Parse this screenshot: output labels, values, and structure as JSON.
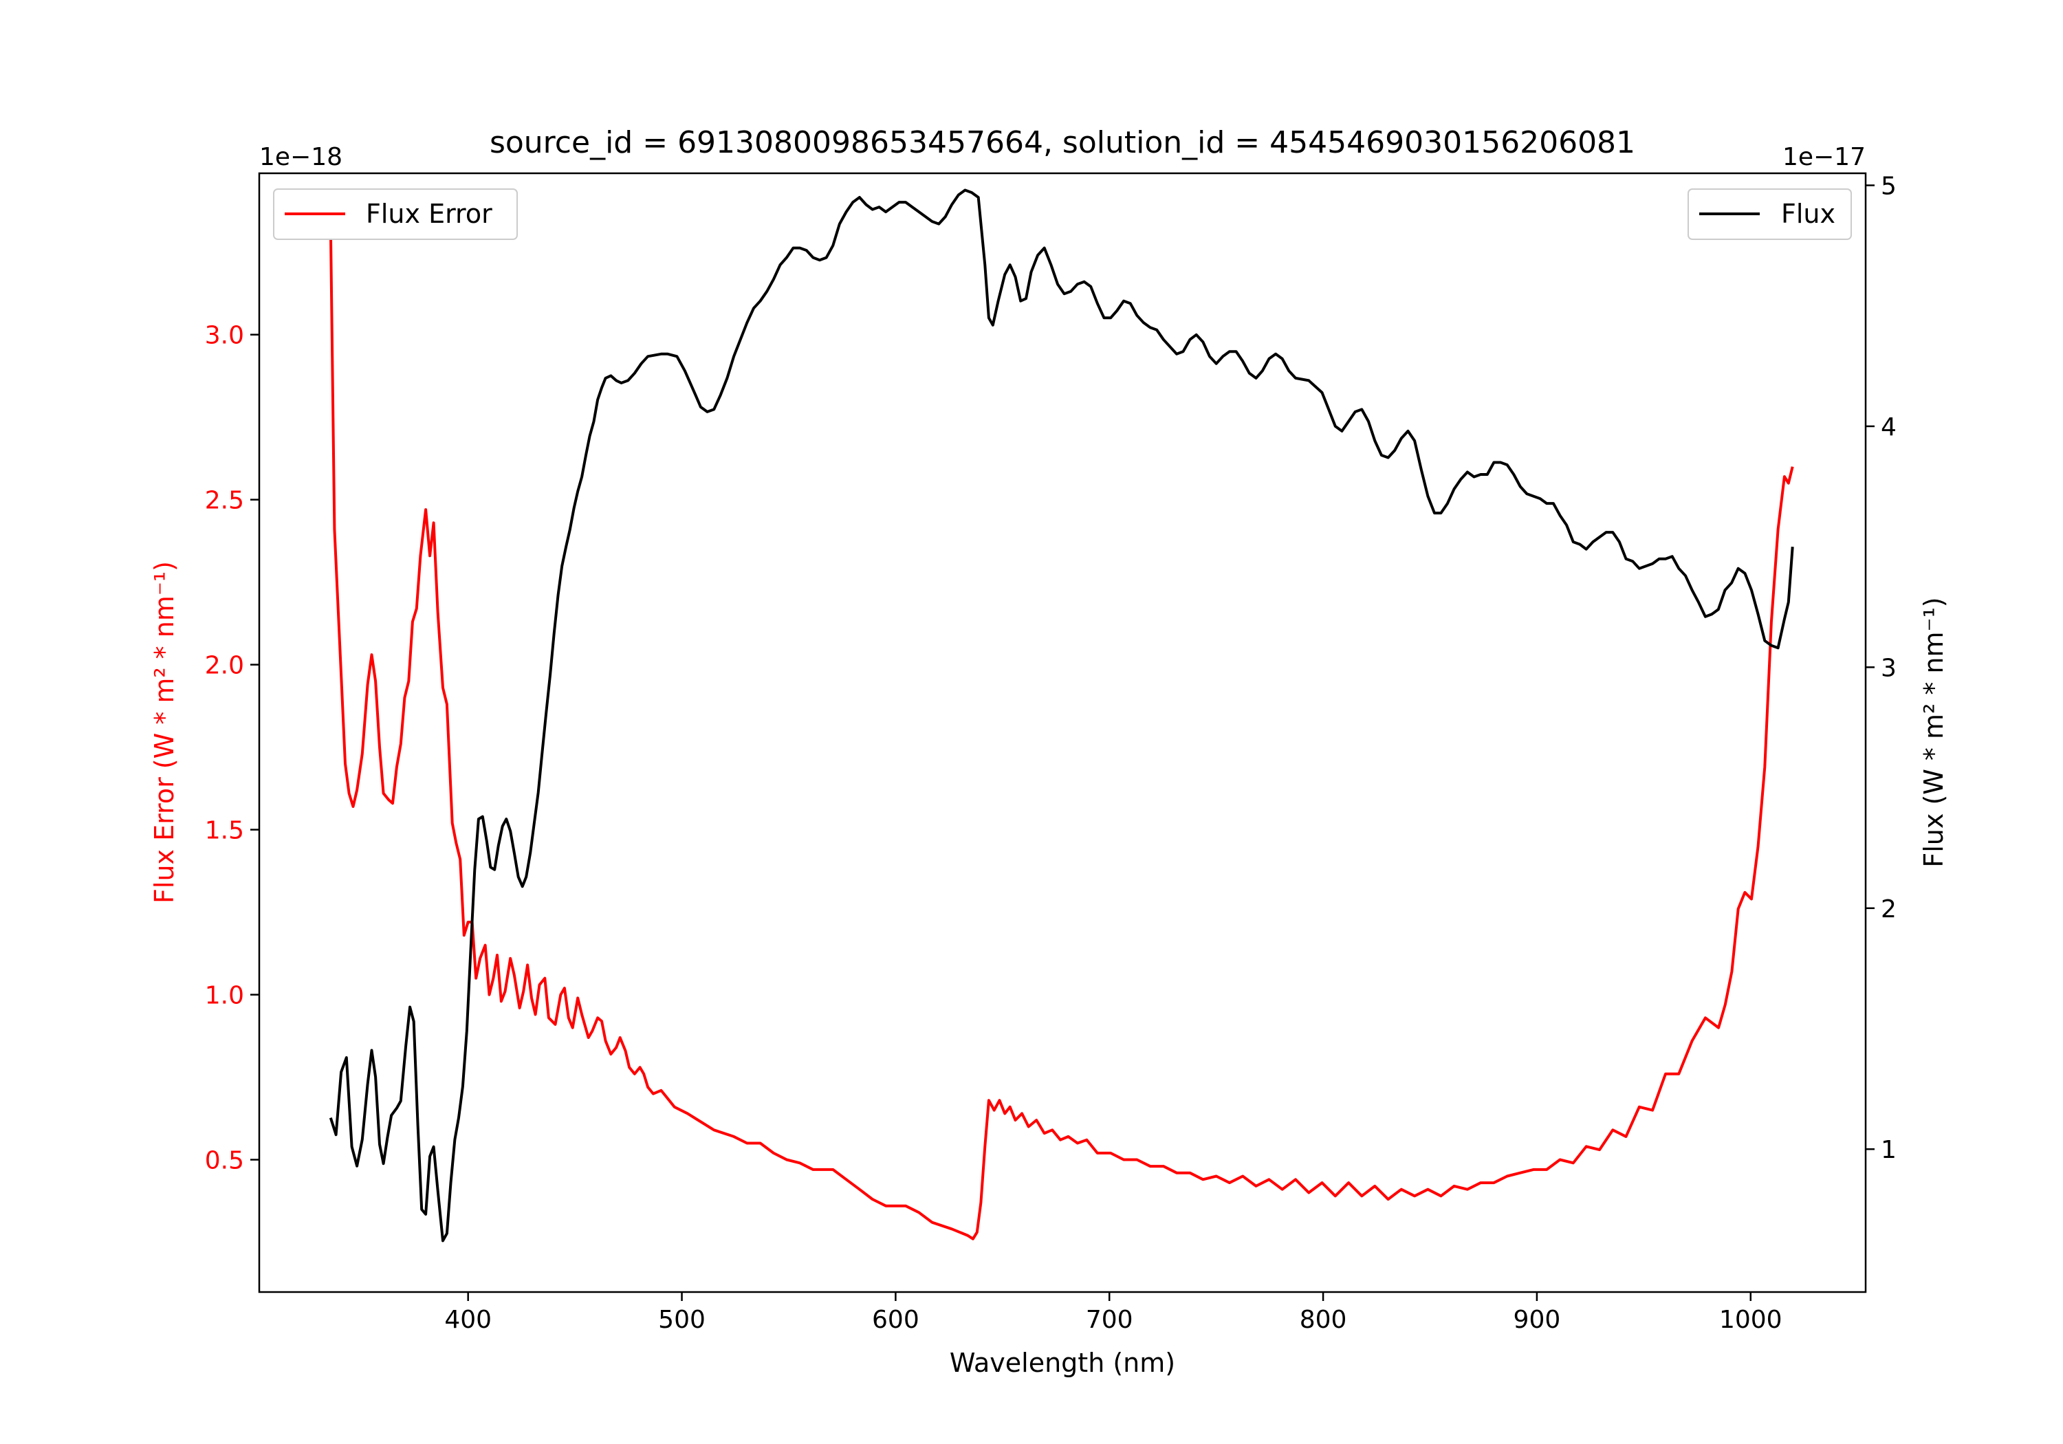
{
  "chart_data": {
    "type": "line",
    "title": "source_id = 6913080098653457664, solution_id = 4545469030156206081",
    "xlabel": "Wavelength (nm)",
    "ylabel_left": "Flux Error (W * m² * nm⁻¹)",
    "ylabel_right": "Flux (W * m² * nm⁻¹)",
    "left_offset_text": "1e−18",
    "right_offset_text": "1e−17",
    "xlim": [
      302.3,
      1053.8
    ],
    "ylim_left": [
      0.099,
      3.489
    ],
    "ylim_right": [
      0.407,
      5.05
    ],
    "xticks": [
      400,
      500,
      600,
      700,
      800,
      900,
      1000
    ],
    "xtick_labels": [
      "400",
      "500",
      "600",
      "700",
      "800",
      "900",
      "1000"
    ],
    "yticks_left": [
      0.5,
      1.0,
      1.5,
      2.0,
      2.5,
      3.0
    ],
    "ytick_labels_left": [
      "0.5",
      "1.0",
      "1.5",
      "2.0",
      "2.5",
      "3.0"
    ],
    "yticks_right": [
      1,
      2,
      3,
      4,
      5
    ],
    "ytick_labels_right": [
      "1",
      "2",
      "3",
      "4",
      "5"
    ],
    "grid": false,
    "series": [
      {
        "name": "Flux Error",
        "axis": "left",
        "color": "#ff0000",
        "legend": "top-left",
        "x": [
          335.7,
          337.5,
          340.6,
          342.5,
          344.3,
          346.2,
          348,
          350.5,
          353,
          354.9,
          356.7,
          358.6,
          360.4,
          362.9,
          364.7,
          366.6,
          368.5,
          370.3,
          372.2,
          374,
          375.9,
          377.7,
          380.2,
          382.1,
          383.9,
          385.8,
          388.2,
          390.1,
          392.6,
          394.4,
          396.3,
          398.1,
          400,
          401.9,
          403.7,
          405.6,
          408,
          409.9,
          411.8,
          413.6,
          415.5,
          417.3,
          419.8,
          421.6,
          424.1,
          425.9,
          427.8,
          429.7,
          431.5,
          433.4,
          435.9,
          437.7,
          440.8,
          443.3,
          445.1,
          447,
          448.9,
          451.3,
          453.2,
          456.3,
          458.1,
          460.6,
          462.5,
          464.3,
          466.8,
          469.3,
          471.1,
          473.6,
          475.4,
          477.9,
          480.4,
          482.2,
          484.1,
          486.6,
          490.3,
          492.8,
          496.5,
          502.7,
          507.6,
          515,
          524.3,
          530.5,
          536.7,
          542.9,
          549,
          555.2,
          561.4,
          570.7,
          576.9,
          583.1,
          589.2,
          595.4,
          604.7,
          610.9,
          617.1,
          626.3,
          633.8,
          636.2,
          638.1,
          639.9,
          641.8,
          643.6,
          646.1,
          648.6,
          651.1,
          653.5,
          656,
          659.1,
          662.2,
          665.9,
          669.6,
          673.3,
          677.1,
          680.8,
          685.1,
          689.4,
          694.4,
          700.6,
          706.7,
          712.9,
          719.1,
          725.3,
          731.5,
          737.7,
          743.8,
          750,
          756.2,
          762.4,
          768.6,
          774.7,
          780.9,
          787.1,
          793.3,
          799.5,
          805.7,
          811.9,
          818.1,
          824.2,
          830.4,
          836.6,
          842.8,
          849,
          855.1,
          861.3,
          867.5,
          873.7,
          879.9,
          886.1,
          892.2,
          898.4,
          904.6,
          910.8,
          917,
          923.1,
          929.3,
          935.5,
          941.7,
          947.9,
          954.1,
          960.2,
          966.4,
          972.6,
          978.8,
          985,
          988.1,
          991.2,
          994.2,
          997.3,
          1000.4,
          1003.5,
          1006.6,
          1009.7,
          1012.8,
          1015.8,
          1017.7,
          1019.6
        ],
        "y": [
          3.33,
          2.41,
          1.97,
          1.7,
          1.61,
          1.57,
          1.62,
          1.73,
          1.94,
          2.03,
          1.95,
          1.75,
          1.61,
          1.59,
          1.58,
          1.69,
          1.76,
          1.9,
          1.95,
          2.13,
          2.17,
          2.33,
          2.47,
          2.33,
          2.43,
          2.16,
          1.93,
          1.88,
          1.52,
          1.46,
          1.41,
          1.18,
          1.22,
          1.22,
          1.05,
          1.11,
          1.15,
          1.0,
          1.05,
          1.12,
          0.98,
          1.01,
          1.11,
          1.06,
          0.96,
          1.01,
          1.09,
          0.99,
          0.94,
          1.03,
          1.05,
          0.93,
          0.91,
          1.0,
          1.02,
          0.93,
          0.9,
          0.99,
          0.94,
          0.87,
          0.89,
          0.93,
          0.92,
          0.86,
          0.82,
          0.84,
          0.87,
          0.83,
          0.78,
          0.76,
          0.78,
          0.76,
          0.72,
          0.7,
          0.71,
          0.69,
          0.66,
          0.64,
          0.62,
          0.59,
          0.57,
          0.55,
          0.55,
          0.52,
          0.5,
          0.49,
          0.47,
          0.47,
          0.44,
          0.41,
          0.38,
          0.36,
          0.36,
          0.34,
          0.31,
          0.29,
          0.27,
          0.26,
          0.28,
          0.37,
          0.54,
          0.68,
          0.65,
          0.68,
          0.64,
          0.66,
          0.62,
          0.64,
          0.6,
          0.62,
          0.58,
          0.59,
          0.56,
          0.57,
          0.55,
          0.56,
          0.52,
          0.52,
          0.5,
          0.5,
          0.48,
          0.48,
          0.46,
          0.46,
          0.44,
          0.45,
          0.43,
          0.45,
          0.42,
          0.44,
          0.41,
          0.44,
          0.4,
          0.43,
          0.39,
          0.43,
          0.39,
          0.42,
          0.38,
          0.41,
          0.39,
          0.41,
          0.39,
          0.42,
          0.41,
          0.43,
          0.43,
          0.45,
          0.46,
          0.47,
          0.47,
          0.5,
          0.49,
          0.54,
          0.53,
          0.59,
          0.57,
          0.66,
          0.65,
          0.76,
          0.76,
          0.86,
          0.93,
          0.9,
          0.97,
          1.07,
          1.26,
          1.31,
          1.29,
          1.45,
          1.69,
          2.13,
          2.41,
          2.57,
          2.55,
          2.6
        ]
      },
      {
        "name": "Flux",
        "axis": "right",
        "color": "#000000",
        "legend": "top-right",
        "x": [
          335.7,
          338.2,
          340.6,
          343.1,
          345.6,
          348,
          350.5,
          353,
          354.9,
          356.7,
          358.6,
          360.4,
          362.3,
          364.1,
          366.6,
          368.5,
          370.9,
          372.8,
          374.6,
          376.5,
          378.3,
          380.2,
          382.1,
          383.9,
          385.8,
          388.2,
          390.1,
          391.9,
          393.8,
          395.6,
          397.5,
          399.4,
          401.2,
          403.1,
          404.9,
          406.8,
          408.7,
          410.5,
          412.4,
          414.2,
          416.1,
          417.9,
          419.8,
          421.6,
          423.5,
          425.4,
          427.2,
          429.1,
          430.9,
          432.8,
          434.6,
          436.5,
          438.4,
          440.2,
          442.1,
          443.9,
          445.8,
          447.6,
          449.5,
          451.3,
          453.2,
          455.1,
          456.9,
          458.8,
          460.6,
          462.5,
          464.3,
          466.8,
          469.3,
          471.7,
          474.8,
          477.9,
          481,
          484.1,
          490.3,
          493.4,
          497.7,
          501.4,
          503.9,
          506.4,
          508.8,
          511.9,
          515,
          518.1,
          521.2,
          524.3,
          527.4,
          530.5,
          533.6,
          536.7,
          539.8,
          542.9,
          546,
          549,
          552.1,
          555.2,
          558.3,
          561.4,
          564.5,
          567.6,
          570.7,
          573.8,
          576.9,
          580,
          583.1,
          586.2,
          589.2,
          592.3,
          595.4,
          598.5,
          601.6,
          604.7,
          607.8,
          610.9,
          614,
          617.1,
          620.2,
          623.3,
          626.3,
          629.4,
          632.5,
          635.6,
          638.7,
          641.8,
          643.6,
          645.5,
          648,
          651.1,
          653.5,
          656,
          658.5,
          661,
          663.4,
          666.5,
          669.6,
          672.7,
          675.8,
          678.9,
          682,
          685.1,
          688.2,
          691.3,
          694.4,
          697.5,
          700.6,
          703.6,
          706.7,
          709.8,
          712.9,
          716,
          719.1,
          722.2,
          725.3,
          728.4,
          731.5,
          734.5,
          737.7,
          740.7,
          743.8,
          746.9,
          750,
          753.1,
          756.2,
          759.3,
          762.4,
          765.5,
          768.6,
          771.6,
          774.7,
          777.8,
          780.9,
          784,
          787.1,
          793.3,
          799.5,
          802.6,
          805.7,
          808.8,
          811.9,
          815,
          818.1,
          821.2,
          824.2,
          827.3,
          830.4,
          833.5,
          836.6,
          839.7,
          842.8,
          845.9,
          849,
          852.1,
          855.1,
          858.2,
          861.3,
          864.4,
          867.5,
          870.6,
          873.7,
          876.8,
          879.9,
          883,
          886.1,
          889.2,
          892.2,
          895.3,
          898.4,
          901.5,
          904.6,
          907.7,
          910.8,
          913.9,
          917,
          920.1,
          923.1,
          926.2,
          929.3,
          932.4,
          935.5,
          938.6,
          941.7,
          944.8,
          947.9,
          951,
          954.1,
          957.2,
          960.2,
          963.3,
          966.4,
          969.5,
          972.6,
          975.6,
          978.8,
          981.8,
          984.9,
          988,
          991.1,
          994.2,
          997.3,
          1000.4,
          1003.5,
          1006.6,
          1009.7,
          1012.8,
          1015.8,
          1017.7,
          1019.6
        ],
        "y": [
          1.13,
          1.06,
          1.32,
          1.38,
          1.01,
          0.93,
          1.04,
          1.27,
          1.41,
          1.3,
          1.02,
          0.94,
          1.05,
          1.14,
          1.17,
          1.2,
          1.43,
          1.59,
          1.53,
          1.1,
          0.75,
          0.73,
          0.97,
          1.01,
          0.83,
          0.62,
          0.65,
          0.86,
          1.04,
          1.13,
          1.26,
          1.49,
          1.82,
          2.16,
          2.37,
          2.38,
          2.28,
          2.17,
          2.16,
          2.26,
          2.34,
          2.37,
          2.32,
          2.23,
          2.13,
          2.09,
          2.13,
          2.23,
          2.35,
          2.48,
          2.64,
          2.81,
          2.97,
          3.14,
          3.3,
          3.42,
          3.5,
          3.57,
          3.66,
          3.73,
          3.79,
          3.88,
          3.96,
          4.02,
          4.11,
          4.16,
          4.2,
          4.21,
          4.19,
          4.18,
          4.19,
          4.22,
          4.26,
          4.29,
          4.3,
          4.3,
          4.29,
          4.23,
          4.18,
          4.13,
          4.08,
          4.06,
          4.07,
          4.13,
          4.2,
          4.29,
          4.36,
          4.43,
          4.49,
          4.52,
          4.56,
          4.61,
          4.67,
          4.7,
          4.74,
          4.74,
          4.73,
          4.7,
          4.69,
          4.7,
          4.75,
          4.84,
          4.89,
          4.93,
          4.95,
          4.92,
          4.9,
          4.91,
          4.89,
          4.91,
          4.93,
          4.93,
          4.91,
          4.89,
          4.87,
          4.85,
          4.84,
          4.87,
          4.92,
          4.96,
          4.98,
          4.97,
          4.95,
          4.67,
          4.45,
          4.42,
          4.52,
          4.63,
          4.67,
          4.62,
          4.52,
          4.53,
          4.64,
          4.71,
          4.74,
          4.67,
          4.59,
          4.55,
          4.56,
          4.59,
          4.6,
          4.58,
          4.51,
          4.45,
          4.45,
          4.48,
          4.52,
          4.51,
          4.46,
          4.43,
          4.41,
          4.4,
          4.36,
          4.33,
          4.3,
          4.31,
          4.36,
          4.38,
          4.35,
          4.29,
          4.26,
          4.29,
          4.31,
          4.31,
          4.27,
          4.22,
          4.2,
          4.23,
          4.28,
          4.3,
          4.28,
          4.23,
          4.2,
          4.19,
          4.14,
          4.07,
          4.0,
          3.98,
          4.02,
          4.06,
          4.07,
          4.02,
          3.94,
          3.88,
          3.87,
          3.9,
          3.95,
          3.98,
          3.94,
          3.82,
          3.71,
          3.64,
          3.64,
          3.68,
          3.74,
          3.78,
          3.81,
          3.79,
          3.8,
          3.8,
          3.85,
          3.85,
          3.84,
          3.8,
          3.75,
          3.72,
          3.71,
          3.7,
          3.68,
          3.68,
          3.63,
          3.59,
          3.52,
          3.51,
          3.49,
          3.52,
          3.54,
          3.56,
          3.56,
          3.52,
          3.45,
          3.44,
          3.41,
          3.42,
          3.43,
          3.45,
          3.45,
          3.46,
          3.41,
          3.38,
          3.32,
          3.27,
          3.21,
          3.22,
          3.24,
          3.32,
          3.35,
          3.41,
          3.39,
          3.32,
          3.22,
          3.11,
          3.09,
          3.08,
          3.2,
          3.27,
          3.5
        ]
      }
    ]
  }
}
